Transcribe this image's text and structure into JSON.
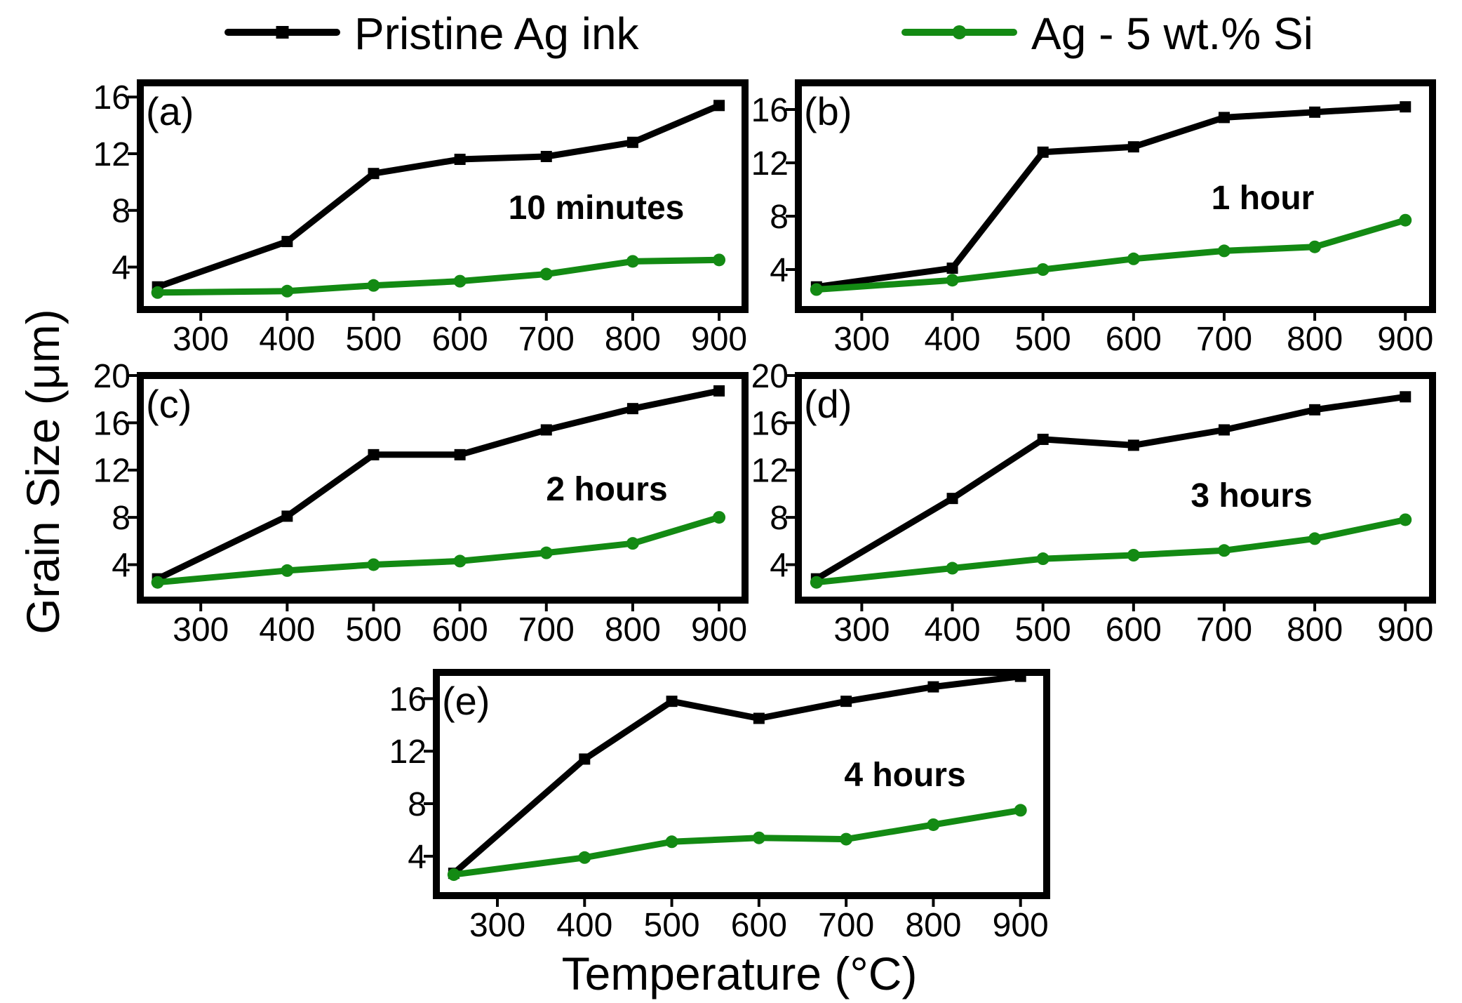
{
  "figure": {
    "ylabel": "Grain Size (μm)",
    "xlabel": "Temperature (°C)"
  },
  "legend": {
    "position": "top",
    "entries": [
      {
        "label": "Pristine Ag ink",
        "color": "#000000",
        "marker": "square"
      },
      {
        "label": "Ag - 5 wt.% Si",
        "color": "#138a13",
        "marker": "circle"
      }
    ]
  },
  "chart_data": [
    {
      "type": "line",
      "panel": "(a)",
      "annotation": "10 minutes",
      "x": [
        250,
        400,
        500,
        600,
        700,
        800,
        900
      ],
      "xticks": [
        300,
        400,
        500,
        600,
        700,
        800,
        900
      ],
      "xlim": [
        230,
        930
      ],
      "ylim": [
        1,
        17
      ],
      "yticks": [
        4,
        8,
        12,
        16
      ],
      "series": [
        {
          "name": "Pristine Ag ink",
          "values": [
            2.6,
            5.8,
            10.6,
            11.6,
            11.8,
            12.8,
            15.4
          ]
        },
        {
          "name": "Ag - 5 wt.% Si",
          "values": [
            2.2,
            2.3,
            2.7,
            3.0,
            3.5,
            4.4,
            4.5
          ]
        }
      ]
    },
    {
      "type": "line",
      "panel": "(b)",
      "annotation": "1 hour",
      "x": [
        250,
        400,
        500,
        600,
        700,
        800,
        900
      ],
      "xticks": [
        300,
        400,
        500,
        600,
        700,
        800,
        900
      ],
      "xlim": [
        230,
        930
      ],
      "ylim": [
        1,
        18
      ],
      "yticks": [
        4,
        8,
        12,
        16
      ],
      "series": [
        {
          "name": "Pristine Ag ink",
          "values": [
            2.7,
            4.1,
            12.8,
            13.2,
            15.4,
            15.8,
            16.2
          ]
        },
        {
          "name": "Ag - 5 wt.% Si",
          "values": [
            2.5,
            3.2,
            4.0,
            4.8,
            5.4,
            5.7,
            7.7
          ]
        }
      ]
    },
    {
      "type": "line",
      "panel": "(c)",
      "annotation": "2 hours",
      "x": [
        250,
        400,
        500,
        600,
        700,
        800,
        900
      ],
      "xticks": [
        300,
        400,
        500,
        600,
        700,
        800,
        900
      ],
      "xlim": [
        230,
        930
      ],
      "ylim": [
        1,
        20
      ],
      "yticks": [
        4,
        8,
        12,
        16,
        20
      ],
      "series": [
        {
          "name": "Pristine Ag ink",
          "values": [
            2.8,
            8.1,
            13.3,
            13.3,
            15.4,
            17.2,
            18.7
          ]
        },
        {
          "name": "Ag - 5 wt.% Si",
          "values": [
            2.5,
            3.5,
            4.0,
            4.3,
            5.0,
            5.8,
            8.0
          ]
        }
      ]
    },
    {
      "type": "line",
      "panel": "(d)",
      "annotation": "3 hours",
      "x": [
        250,
        400,
        500,
        600,
        700,
        800,
        900
      ],
      "xticks": [
        300,
        400,
        500,
        600,
        700,
        800,
        900
      ],
      "xlim": [
        230,
        930
      ],
      "ylim": [
        1,
        20
      ],
      "yticks": [
        4,
        8,
        12,
        16,
        20
      ],
      "series": [
        {
          "name": "Pristine Ag ink",
          "values": [
            2.8,
            9.6,
            14.6,
            14.1,
            15.4,
            17.1,
            18.2
          ]
        },
        {
          "name": "Ag - 5 wt.% Si",
          "values": [
            2.5,
            3.7,
            4.5,
            4.8,
            5.2,
            6.2,
            7.8
          ]
        }
      ]
    },
    {
      "type": "line",
      "panel": "(e)",
      "annotation": "4 hours",
      "x": [
        250,
        400,
        500,
        600,
        700,
        800,
        900
      ],
      "xticks": [
        300,
        400,
        500,
        600,
        700,
        800,
        900
      ],
      "xlim": [
        230,
        930
      ],
      "ylim": [
        1,
        18
      ],
      "yticks": [
        4,
        8,
        12,
        16
      ],
      "series": [
        {
          "name": "Pristine Ag ink",
          "values": [
            2.7,
            11.4,
            15.8,
            14.5,
            15.8,
            16.9,
            17.7
          ]
        },
        {
          "name": "Ag - 5 wt.% Si",
          "values": [
            2.6,
            3.9,
            5.1,
            5.4,
            5.3,
            6.4,
            7.5
          ]
        }
      ]
    }
  ]
}
